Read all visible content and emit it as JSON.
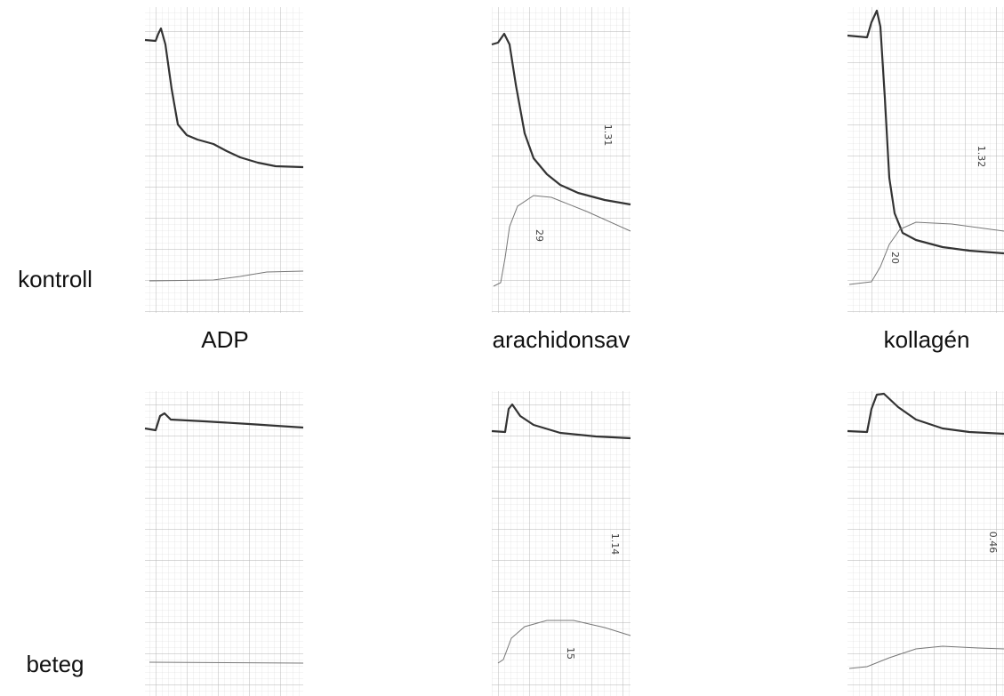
{
  "row_labels": [
    "kontroll",
    "beteg"
  ],
  "column_labels": [
    "ADP",
    "arachidonsav",
    "kollagén"
  ],
  "annotations": [
    "1.31",
    "29",
    "1.32",
    "20",
    "1.14",
    "15",
    "0.46"
  ]
}
